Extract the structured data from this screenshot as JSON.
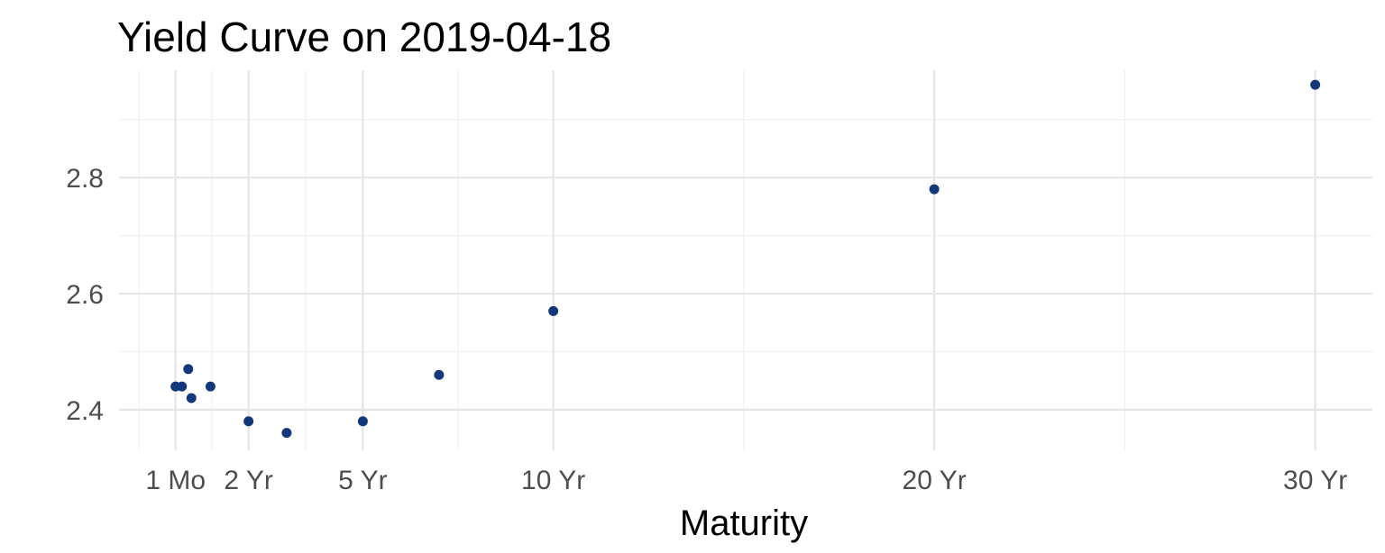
{
  "chart_data": {
    "type": "scatter",
    "title": "Yield Curve on 2019-04-18",
    "xlabel": "Maturity",
    "ylabel": "",
    "x_ticks": [
      {
        "value": 0.0833,
        "label": "1 Mo"
      },
      {
        "value": 2,
        "label": "2 Yr"
      },
      {
        "value": 5,
        "label": "5 Yr"
      },
      {
        "value": 10,
        "label": "10 Yr"
      },
      {
        "value": 20,
        "label": "20 Yr"
      },
      {
        "value": 30,
        "label": "30 Yr"
      }
    ],
    "y_ticks": [
      2.4,
      2.6,
      2.8
    ],
    "xlim": [
      -1.4,
      31.5
    ],
    "ylim": [
      2.33,
      2.985
    ],
    "grid": true,
    "point_color": "#12377a",
    "points": [
      {
        "x": 0.0833,
        "y": 2.44
      },
      {
        "x": 0.25,
        "y": 2.44
      },
      {
        "x": 0.5,
        "y": 2.42
      },
      {
        "x": 0.4167,
        "y": 2.47
      },
      {
        "x": 1,
        "y": 2.44
      },
      {
        "x": 2,
        "y": 2.38
      },
      {
        "x": 3,
        "y": 2.36
      },
      {
        "x": 5,
        "y": 2.38
      },
      {
        "x": 7,
        "y": 2.46
      },
      {
        "x": 10,
        "y": 2.57
      },
      {
        "x": 20,
        "y": 2.78
      },
      {
        "x": 30,
        "y": 2.96
      }
    ]
  }
}
